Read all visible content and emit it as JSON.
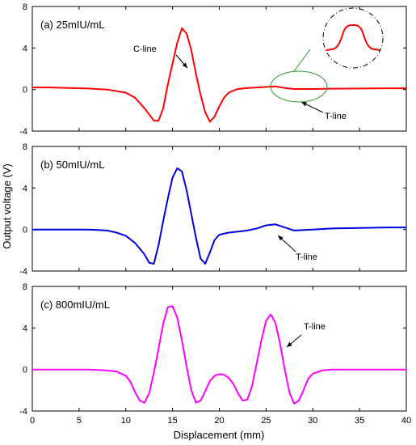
{
  "figure": {
    "ylabel": "Output voltage (V)",
    "xlabel": "Displacement (mm)"
  },
  "chart_data": [
    {
      "type": "line",
      "panel_label": "(a) 25mIU/mL",
      "color": "#ff0000",
      "xlim": [
        0,
        40
      ],
      "ylim": [
        -4,
        8
      ],
      "yticks": [
        -4,
        0,
        4,
        8
      ],
      "xticks": [],
      "annotations": {
        "c_line": "C-line",
        "t_line": "T-line"
      },
      "inset": {
        "present": true,
        "shows": "zoom of T-line peak"
      },
      "series": [
        {
          "x": [
            0,
            2,
            4,
            6,
            8,
            10,
            11,
            12,
            13,
            13.5,
            14,
            14.5,
            15,
            15.5,
            16,
            16.5,
            17,
            17.5,
            18,
            18.5,
            19,
            19.5,
            20,
            20.5,
            21,
            21.5,
            22,
            23,
            24,
            25,
            26,
            27,
            28,
            30,
            32,
            35,
            38,
            40
          ],
          "y": [
            0.2,
            0.2,
            0.15,
            0.1,
            0.0,
            -0.3,
            -0.8,
            -1.8,
            -3.0,
            -3.0,
            -1.8,
            0.5,
            2.5,
            4.5,
            5.9,
            5.4,
            3.8,
            1.5,
            -0.5,
            -2.2,
            -3.1,
            -2.6,
            -1.6,
            -0.8,
            -0.3,
            -0.1,
            0.05,
            0.15,
            0.2,
            0.25,
            0.3,
            0.15,
            0.05,
            0.05,
            0.08,
            0.1,
            0.12,
            0.12
          ]
        }
      ]
    },
    {
      "type": "line",
      "panel_label": "(b) 50mIU/mL",
      "color": "#0000dd",
      "xlim": [
        0,
        40
      ],
      "ylim": [
        -4,
        8
      ],
      "yticks": [
        -4,
        0,
        4,
        8
      ],
      "xticks": [],
      "annotations": {
        "t_line": "T-line"
      },
      "series": [
        {
          "x": [
            0,
            2,
            4,
            6,
            8,
            9,
            10,
            11,
            12,
            12.5,
            13,
            13.5,
            14,
            14.5,
            15,
            15.5,
            16,
            16.5,
            17,
            17.5,
            18,
            18.5,
            19,
            19.5,
            20,
            21,
            22,
            23,
            24,
            25,
            26,
            27,
            28,
            30,
            32,
            35,
            38,
            40
          ],
          "y": [
            0.0,
            0.0,
            0.0,
            0.0,
            -0.1,
            -0.3,
            -0.6,
            -1.3,
            -2.4,
            -3.2,
            -3.3,
            -1.5,
            0.8,
            3.0,
            5.0,
            5.9,
            5.6,
            3.8,
            1.5,
            -0.8,
            -2.8,
            -3.3,
            -2.2,
            -1.0,
            -0.5,
            -0.3,
            -0.2,
            -0.1,
            0.1,
            0.4,
            0.5,
            0.2,
            -0.1,
            0.0,
            0.1,
            0.15,
            0.2,
            0.2
          ]
        }
      ]
    },
    {
      "type": "line",
      "panel_label": "(c) 800mIU/mL",
      "color": "#ff00ff",
      "xlim": [
        0,
        40
      ],
      "ylim": [
        -4,
        8
      ],
      "yticks": [
        -4,
        0,
        4,
        8
      ],
      "xticks": [
        0,
        5,
        10,
        15,
        20,
        25,
        30,
        35,
        40
      ],
      "annotations": {
        "t_line": "T-line"
      },
      "series": [
        {
          "x": [
            0,
            2,
            4,
            6,
            8,
            9,
            10,
            10.5,
            11,
            11.5,
            12,
            12.5,
            13,
            13.5,
            14,
            14.5,
            15,
            15.5,
            16,
            16.5,
            17,
            17.5,
            18,
            18.5,
            19,
            19.5,
            20,
            20.5,
            21,
            21.5,
            22,
            22.5,
            23,
            23.5,
            24,
            24.5,
            25,
            25.5,
            26,
            26.5,
            27,
            27.5,
            28,
            28.5,
            29,
            29.5,
            30,
            31,
            32,
            34,
            36,
            38,
            40
          ],
          "y": [
            0.0,
            0.0,
            0.0,
            0.0,
            -0.1,
            -0.2,
            -0.6,
            -1.2,
            -2.2,
            -3.0,
            -3.2,
            -2.3,
            -0.3,
            2.0,
            4.4,
            6.0,
            6.1,
            5.0,
            2.8,
            0.3,
            -2.0,
            -3.2,
            -3.0,
            -2.1,
            -1.1,
            -0.6,
            -0.45,
            -0.5,
            -0.8,
            -1.4,
            -2.3,
            -3.0,
            -2.9,
            -1.6,
            0.6,
            2.8,
            4.7,
            5.3,
            4.5,
            2.5,
            0.0,
            -2.2,
            -3.3,
            -3.0,
            -2.0,
            -0.9,
            -0.4,
            -0.1,
            0.0,
            0.0,
            0.0,
            0.0,
            0.0
          ]
        }
      ]
    }
  ]
}
